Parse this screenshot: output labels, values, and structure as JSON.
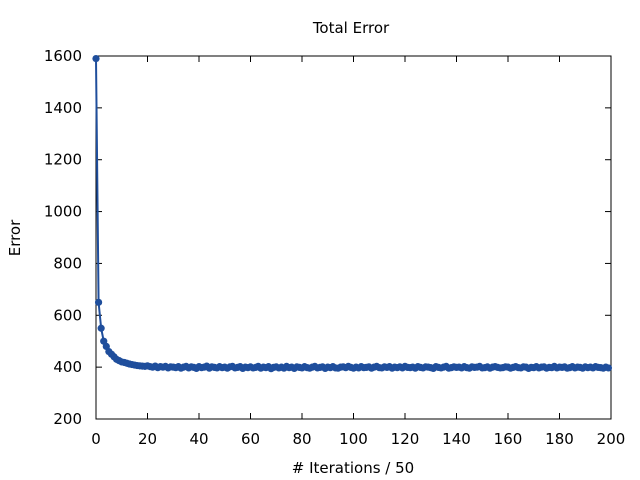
{
  "chart_data": {
    "type": "line",
    "title": "Total Error",
    "xlabel": "# Iterations / 50",
    "ylabel": "Error",
    "xlim": [
      0,
      200
    ],
    "ylim": [
      200,
      1600
    ],
    "xticks": [
      0,
      20,
      40,
      60,
      80,
      100,
      120,
      140,
      160,
      180,
      200
    ],
    "yticks": [
      200,
      400,
      600,
      800,
      1000,
      1200,
      1400,
      1600
    ],
    "grid": false,
    "legend": "none",
    "series_color": "#1f4e9c",
    "series": [
      {
        "x": [
          0,
          1,
          2,
          3,
          4,
          5,
          6,
          7,
          8,
          9,
          10,
          11,
          12,
          13,
          14,
          15,
          16,
          17,
          18,
          19,
          20,
          21,
          22,
          23,
          24,
          25,
          26,
          27,
          28,
          29,
          30,
          31,
          32,
          33,
          34,
          35,
          36,
          37,
          38,
          39,
          40,
          41,
          42,
          43,
          44,
          45,
          46,
          47,
          48,
          49,
          50,
          51,
          52,
          53,
          54,
          55,
          56,
          57,
          58,
          59,
          60,
          61,
          62,
          63,
          64,
          65,
          66,
          67,
          68,
          69,
          70,
          71,
          72,
          73,
          74,
          75,
          76,
          77,
          78,
          79,
          80,
          81,
          82,
          83,
          84,
          85,
          86,
          87,
          88,
          89,
          90,
          91,
          92,
          93,
          94,
          95,
          96,
          97,
          98,
          99,
          100,
          101,
          102,
          103,
          104,
          105,
          106,
          107,
          108,
          109,
          110,
          111,
          112,
          113,
          114,
          115,
          116,
          117,
          118,
          119,
          120,
          121,
          122,
          123,
          124,
          125,
          126,
          127,
          128,
          129,
          130,
          131,
          132,
          133,
          134,
          135,
          136,
          137,
          138,
          139,
          140,
          141,
          142,
          143,
          144,
          145,
          146,
          147,
          148,
          149,
          150,
          151,
          152,
          153,
          154,
          155,
          156,
          157,
          158,
          159,
          160,
          161,
          162,
          163,
          164,
          165,
          166,
          167,
          168,
          169,
          170,
          171,
          172,
          173,
          174,
          175,
          176,
          177,
          178,
          179,
          180,
          181,
          182,
          183,
          184,
          185,
          186,
          187,
          188,
          189,
          190,
          191,
          192,
          193,
          194,
          195,
          196,
          197,
          198,
          199
        ],
        "values": [
          1590,
          650,
          550,
          500,
          480,
          460,
          450,
          440,
          430,
          425,
          420,
          418,
          415,
          412,
          410,
          408,
          406,
          405,
          404,
          403,
          405,
          402,
          400,
          404,
          398,
          402,
          400,
          403,
          397,
          401,
          400,
          398,
          402,
          396,
          400,
          403,
          397,
          401,
          399,
          395,
          402,
          398,
          400,
          404,
          396,
          401,
          399,
          397,
          402,
          398,
          400,
          396,
          401,
          403,
          397,
          399,
          402,
          395,
          400,
          398,
          401,
          397,
          399,
          403,
          396,
          400,
          398,
          402,
          394,
          399,
          401,
          397,
          400,
          396,
          403,
          398,
          400,
          395,
          401,
          399,
          397,
          402,
          398,
          396,
          400,
          403,
          397,
          399,
          401,
          395,
          400,
          398,
          402,
          397,
          396,
          400,
          401,
          398,
          403,
          399,
          396,
          400,
          397,
          402,
          398,
          399,
          401,
          396,
          400,
          403,
          398,
          397,
          401,
          399,
          402,
          396,
          400,
          398,
          401,
          397,
          403,
          399,
          398,
          400,
          396,
          402,
          399,
          397,
          401,
          400,
          398,
          395,
          402,
          399,
          397,
          400,
          403,
          396,
          398,
          401,
          399,
          400,
          397,
          402,
          398,
          396,
          401,
          399,
          400,
          403,
          397,
          398,
          401,
          396,
          400,
          402,
          399,
          397,
          398,
          401,
          400,
          396,
          399,
          402,
          398,
          397,
          401,
          400,
          395,
          399,
          398,
          402,
          397,
          400,
          401,
          396,
          399,
          398,
          403,
          397,
          400,
          399,
          401,
          396,
          398,
          402,
          397,
          400,
          399,
          396,
          401,
          398,
          400,
          397,
          402,
          399,
          398,
          396,
          400,
          397
        ]
      }
    ]
  }
}
